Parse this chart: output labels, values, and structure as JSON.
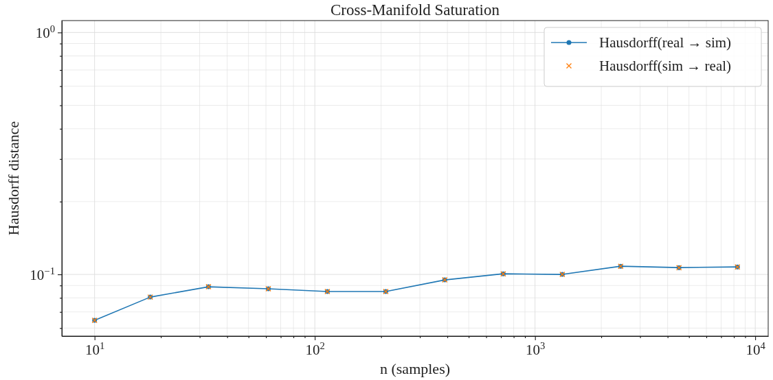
{
  "chart_data": {
    "type": "line",
    "title": "Cross-Manifold Saturation",
    "xlabel": "n (samples)",
    "ylabel": "Hausdorff distance",
    "log": "xy",
    "grid": true,
    "legend": "top right",
    "xlim": [
      7.1,
      11450
    ],
    "ylim": [
      0.0556,
      1.12
    ],
    "xticks": [
      {
        "value": 10,
        "label": "10$^{1}$"
      },
      {
        "value": 20,
        "label": null
      },
      {
        "value": 30,
        "label": null
      },
      {
        "value": 40,
        "label": null
      },
      {
        "value": 50,
        "label": null
      },
      {
        "value": 60,
        "label": null
      },
      {
        "value": 70,
        "label": null
      },
      {
        "value": 80,
        "label": null
      },
      {
        "value": 90,
        "label": null
      },
      {
        "value": 100,
        "label": "10$^{2}$"
      },
      {
        "value": 200,
        "label": null
      },
      {
        "value": 300,
        "label": null
      },
      {
        "value": 400,
        "label": null
      },
      {
        "value": 500,
        "label": null
      },
      {
        "value": 600,
        "label": null
      },
      {
        "value": 700,
        "label": null
      },
      {
        "value": 800,
        "label": null
      },
      {
        "value": 900,
        "label": null
      },
      {
        "value": 1000,
        "label": "10$^{3}$"
      },
      {
        "value": 2000,
        "label": null
      },
      {
        "value": 3000,
        "label": null
      },
      {
        "value": 4000,
        "label": null
      },
      {
        "value": 5000,
        "label": null
      },
      {
        "value": 6000,
        "label": null
      },
      {
        "value": 7000,
        "label": null
      },
      {
        "value": 8000,
        "label": null
      },
      {
        "value": 9000,
        "label": null
      },
      {
        "value": 10000,
        "label": "10$^{4}$"
      }
    ],
    "yticks": [
      {
        "value": 0.06,
        "label": null
      },
      {
        "value": 0.07,
        "label": null
      },
      {
        "value": 0.08,
        "label": null
      },
      {
        "value": 0.09,
        "label": null
      },
      {
        "value": 0.1,
        "label": "10$^{−1}$"
      },
      {
        "value": 0.2,
        "label": null
      },
      {
        "value": 0.3,
        "label": null
      },
      {
        "value": 0.4,
        "label": null
      },
      {
        "value": 0.5,
        "label": null
      },
      {
        "value": 0.6,
        "label": null
      },
      {
        "value": 0.7,
        "label": null
      },
      {
        "value": 0.8,
        "label": null
      },
      {
        "value": 0.9,
        "label": null
      },
      {
        "value": 1,
        "label": "10$^{0}$"
      }
    ],
    "x": [
      10,
      17.9,
      32.9,
      61.5,
      114,
      210,
      389,
      717,
      1330,
      2448,
      4505,
      8300
    ],
    "series": [
      {
        "name": "Hausdorff(real → sim)",
        "marker": "circle",
        "color": "#1f77b4",
        "values": [
          0.0646,
          0.0806,
          0.0889,
          0.0872,
          0.085,
          0.085,
          0.0949,
          0.1006,
          0.1,
          0.1081,
          0.1067,
          0.1074
        ]
      },
      {
        "name": "Hausdorff(sim → real)",
        "type": "scatter",
        "marker": "cross",
        "color": "#ff7f0e",
        "values": [
          0.0646,
          0.0806,
          0.0889,
          0.0872,
          0.085,
          0.085,
          0.0949,
          0.1006,
          0.1,
          0.1081,
          0.1067,
          0.1074
        ]
      }
    ]
  }
}
